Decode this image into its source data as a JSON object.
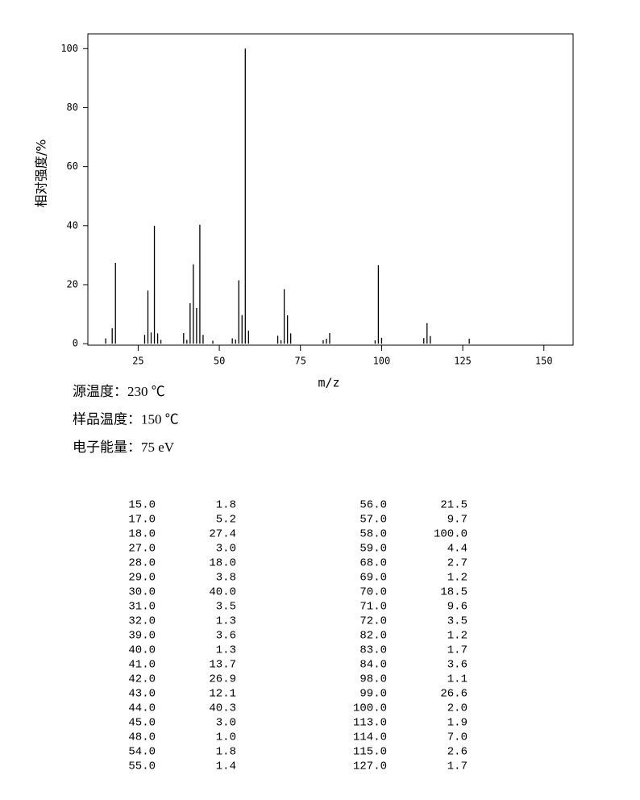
{
  "chart_data": {
    "type": "stem",
    "xlabel": "m/z",
    "ylabel": "相对强度/%",
    "x": [
      15,
      17,
      18,
      27,
      28,
      29,
      30,
      31,
      32,
      39,
      40,
      41,
      42,
      43,
      44,
      45,
      48,
      54,
      55,
      56,
      57,
      58,
      59,
      68,
      69,
      70,
      71,
      72,
      82,
      83,
      84,
      98,
      99,
      100,
      113,
      114,
      115,
      127
    ],
    "values": [
      1.8,
      5.2,
      27.4,
      3.0,
      18.0,
      3.8,
      40.0,
      3.5,
      1.3,
      3.6,
      1.3,
      13.7,
      26.9,
      12.1,
      40.3,
      3.0,
      1.0,
      1.8,
      1.4,
      21.5,
      9.7,
      100.0,
      4.4,
      2.7,
      1.2,
      18.5,
      9.6,
      3.5,
      1.2,
      1.7,
      3.6,
      1.1,
      26.6,
      2.0,
      1.9,
      7.0,
      2.6,
      1.7
    ],
    "color": "#000000",
    "xlim": [
      9.5,
      159
    ],
    "xticks": [
      25,
      50,
      75,
      100,
      125,
      150
    ],
    "ylim": [
      -0.5,
      105
    ],
    "yticks": [
      0,
      20,
      40,
      60,
      80,
      100
    ]
  },
  "conditions": [
    "源温度：230 ℃",
    "样品温度：150 ℃",
    "电子能量：75 eV"
  ],
  "table": {
    "rows": [
      [
        "15.0",
        "1.8",
        "56.0",
        "21.5"
      ],
      [
        "17.0",
        "5.2",
        "57.0",
        "9.7"
      ],
      [
        "18.0",
        "27.4",
        "58.0",
        "100.0"
      ],
      [
        "27.0",
        "3.0",
        "59.0",
        "4.4"
      ],
      [
        "28.0",
        "18.0",
        "68.0",
        "2.7"
      ],
      [
        "29.0",
        "3.8",
        "69.0",
        "1.2"
      ],
      [
        "30.0",
        "40.0",
        "70.0",
        "18.5"
      ],
      [
        "31.0",
        "3.5",
        "71.0",
        "9.6"
      ],
      [
        "32.0",
        "1.3",
        "72.0",
        "3.5"
      ],
      [
        "39.0",
        "3.6",
        "82.0",
        "1.2"
      ],
      [
        "40.0",
        "1.3",
        "83.0",
        "1.7"
      ],
      [
        "41.0",
        "13.7",
        "84.0",
        "3.6"
      ],
      [
        "42.0",
        "26.9",
        "98.0",
        "1.1"
      ],
      [
        "43.0",
        "12.1",
        "99.0",
        "26.6"
      ],
      [
        "44.0",
        "40.3",
        "100.0",
        "2.0"
      ],
      [
        "45.0",
        "3.0",
        "113.0",
        "1.9"
      ],
      [
        "48.0",
        "1.0",
        "114.0",
        "7.0"
      ],
      [
        "54.0",
        "1.8",
        "115.0",
        "2.6"
      ],
      [
        "55.0",
        "1.4",
        "127.0",
        "1.7"
      ]
    ]
  }
}
